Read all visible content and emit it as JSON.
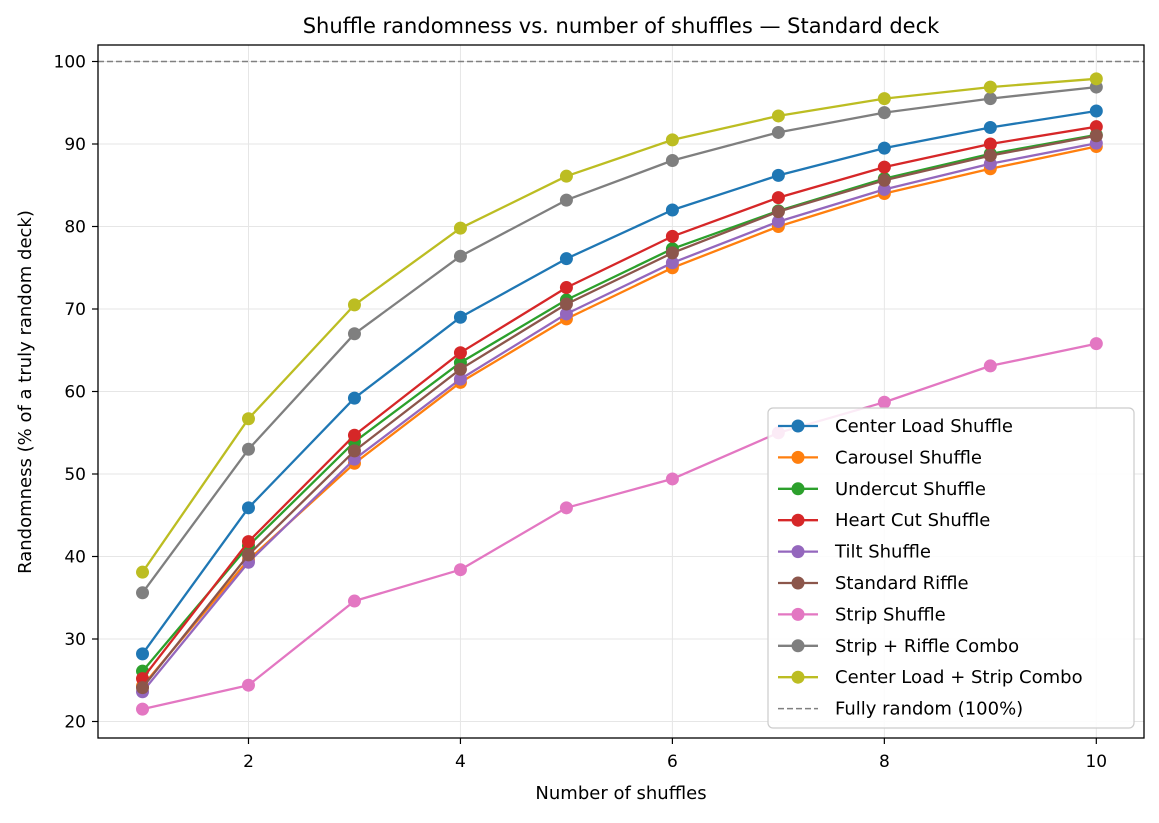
{
  "chart_data": {
    "type": "line",
    "title": "Shuffle randomness vs. number of shuffles — Standard deck",
    "xlabel": "Number of shuffles",
    "ylabel": "Randomness (% of a truly random deck)",
    "xlim": [
      0.58,
      10.45
    ],
    "ylim": [
      18,
      102
    ],
    "xticks": [
      2,
      4,
      6,
      8,
      10
    ],
    "yticks": [
      20,
      30,
      40,
      50,
      60,
      70,
      80,
      90,
      100
    ],
    "grid": true,
    "legend_position": "lower-right",
    "x": [
      1,
      2,
      3,
      4,
      5,
      6,
      7,
      8,
      9,
      10
    ],
    "series": [
      {
        "name": "Center Load Shuffle",
        "color": "#1f77b4",
        "marker": "circle",
        "values": [
          28.2,
          45.9,
          59.2,
          69.0,
          76.1,
          82.0,
          86.2,
          89.5,
          92.0,
          94.0
        ]
      },
      {
        "name": "Carousel Shuffle",
        "color": "#ff7f0e",
        "marker": "circle",
        "values": [
          24.3,
          39.6,
          51.3,
          61.1,
          68.8,
          75.0,
          80.0,
          84.0,
          87.0,
          89.7
        ]
      },
      {
        "name": "Undercut Shuffle",
        "color": "#2ca02c",
        "marker": "circle",
        "values": [
          26.1,
          41.3,
          53.9,
          63.5,
          71.1,
          77.3,
          81.9,
          85.8,
          88.8,
          91.1
        ]
      },
      {
        "name": "Heart Cut Shuffle",
        "color": "#d62728",
        "marker": "circle",
        "values": [
          25.2,
          41.8,
          54.7,
          64.7,
          72.6,
          78.8,
          83.5,
          87.2,
          90.0,
          92.1
        ]
      },
      {
        "name": "Tilt Shuffle",
        "color": "#9467bd",
        "marker": "circle",
        "values": [
          23.6,
          39.3,
          51.8,
          61.5,
          69.4,
          75.6,
          80.6,
          84.5,
          87.6,
          90.1
        ]
      },
      {
        "name": "Standard Riffle",
        "color": "#8c564b",
        "marker": "circle",
        "values": [
          24.1,
          40.2,
          52.8,
          62.7,
          70.6,
          76.8,
          81.8,
          85.6,
          88.6,
          91.0
        ]
      },
      {
        "name": "Strip Shuffle",
        "color": "#e377c2",
        "marker": "circle",
        "values": [
          21.5,
          24.4,
          34.6,
          38.4,
          45.9,
          49.4,
          55.0,
          58.7,
          63.1,
          65.8
        ]
      },
      {
        "name": "Strip + Riffle Combo",
        "color": "#7f7f7f",
        "marker": "circle",
        "values": [
          35.6,
          53.0,
          67.0,
          76.4,
          83.2,
          88.0,
          91.4,
          93.8,
          95.5,
          96.9
        ]
      },
      {
        "name": "Center Load + Strip Combo",
        "color": "#bcbd22",
        "marker": "circle",
        "values": [
          38.1,
          56.7,
          70.5,
          79.8,
          86.1,
          90.5,
          93.4,
          95.5,
          96.9,
          97.9
        ]
      }
    ],
    "reference_lines": [
      {
        "name": "Fully random (100%)",
        "y": 100,
        "color": "#808080",
        "style": "dashed"
      }
    ]
  }
}
